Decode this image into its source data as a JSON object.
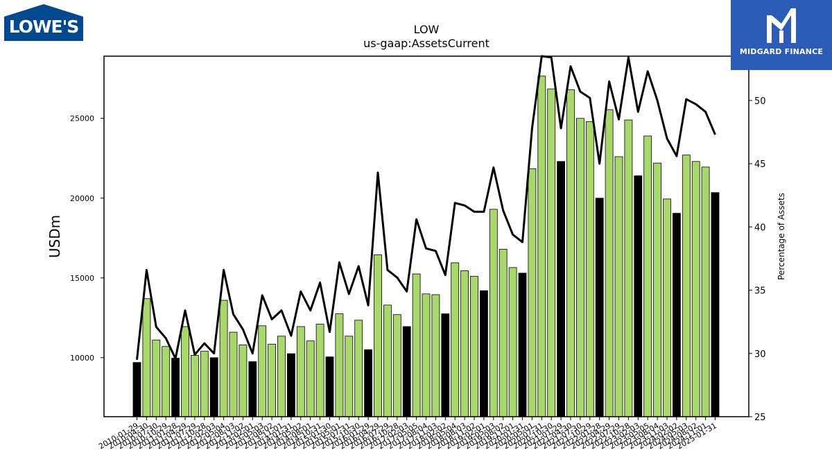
{
  "logos": {
    "left": {
      "text": "LOWE'S",
      "color": "#004990"
    },
    "right": {
      "text": "MIDGARD FINANCE",
      "color": "#2b5db8"
    }
  },
  "chart_data": {
    "type": "bar",
    "title": "LOW",
    "subtitle": "us-gaap:AssetsCurrent",
    "ylabel": "USDm",
    "y2label": "Percentage of Assets",
    "ylim": [
      6300,
      28900
    ],
    "y2lim": [
      25,
      53.5
    ],
    "yticks": [
      10000,
      15000,
      20000,
      25000
    ],
    "y2ticks": [
      25,
      30,
      35,
      40,
      45,
      50
    ],
    "colors": {
      "annual": "#000000",
      "quarterly": "#a6d96a",
      "line": "#000000"
    },
    "categories": [
      "2010-01-29",
      "2010-04-30",
      "2010-07-30",
      "2010-10-29",
      "2011-01-28",
      "2011-04-29",
      "2011-07-29",
      "2011-10-28",
      "2012-02-03",
      "2012-05-04",
      "2012-08-03",
      "2012-11-02",
      "2013-02-01",
      "2013-05-03",
      "2013-08-02",
      "2013-11-01",
      "2014-01-31",
      "2014-05-02",
      "2014-08-01",
      "2014-10-31",
      "2015-01-30",
      "2015-05-01",
      "2015-07-31",
      "2015-10-30",
      "2016-01-29",
      "2016-04-29",
      "2016-07-29",
      "2016-10-28",
      "2017-02-03",
      "2017-05-05",
      "2017-08-04",
      "2017-11-03",
      "2018-02-02",
      "2018-05-04",
      "2018-08-03",
      "2018-11-02",
      "2019-02-01",
      "2019-05-03",
      "2019-08-02",
      "2019-11-01",
      "2020-01-31",
      "2020-05-01",
      "2020-07-31",
      "2020-10-30",
      "2021-01-29",
      "2021-04-30",
      "2021-07-30",
      "2021-10-29",
      "2022-01-28",
      "2022-04-29",
      "2022-07-29",
      "2022-10-28",
      "2023-02-03",
      "2023-05-05",
      "2023-08-04",
      "2023-11-03",
      "2024-02-02",
      "2024-05-03",
      "2024-08-02",
      "2024-11-01",
      "2025-01-31"
    ],
    "tick_labels": [
      "2010-01-29",
      "2010-04-30",
      "2010-07-30",
      "2010-10-29",
      "2011-01-28",
      "2011-04-29",
      "2011-07-29",
      "2011-10-28",
      "2012-02-03",
      "2012-05-04",
      "2012-08-03",
      "2012-11-02",
      "2013-02-01",
      "2013-05-03",
      "2013-08-02",
      "2013-11-01",
      "2014-01-31",
      "2014-05-02",
      "2014-08-01",
      "2014-10-31",
      "2015-01-30",
      "2015-05-01",
      "2015-07-31",
      "2015-10-30",
      "2016-01-29",
      "2016-04-29",
      "2016-07-29",
      "2016-10-28",
      "2017-02-03",
      "2017-05-05",
      "2017-08-04",
      "2017-11-03",
      "2018-02-02",
      "2018-05-04",
      "2018-08-03",
      "2018-11-02",
      "2019-02-01",
      "2019-05-03",
      "2019-08-02",
      "2019-11-01",
      "2020-01-31",
      "2020-05-01",
      "2020-07-31",
      "2020-10-30",
      "2021-01-29",
      "2021-04-30",
      "2021-07-30",
      "2021-10-29",
      "2022-01-28",
      "2022-04-29",
      "2022-07-29",
      "2022-10-28",
      "2023-02-03",
      "2023-05-05",
      "2023-08-04",
      "2023-11-03",
      "2024-02-02",
      "2024-05-03",
      "2024-08-02",
      "2024-11-01",
      "2025-01-31"
    ],
    "values": [
      9700,
      13700,
      11100,
      10700,
      9970,
      11950,
      10150,
      10400,
      10000,
      13600,
      11600,
      10800,
      9750,
      12000,
      10850,
      11350,
      10250,
      11950,
      11050,
      12100,
      10050,
      12750,
      11350,
      12350,
      10500,
      16450,
      13300,
      12700,
      11950,
      15250,
      14000,
      13950,
      12750,
      15950,
      15450,
      15100,
      14200,
      19300,
      16800,
      15650,
      15300,
      21850,
      27650,
      26850,
      22300,
      26800,
      25000,
      24800,
      20000,
      25550,
      22600,
      24900,
      21400,
      23900,
      22200,
      19950,
      19050,
      22700,
      22300,
      21950,
      20350
    ],
    "annual": [
      true,
      false,
      false,
      false,
      true,
      false,
      false,
      false,
      true,
      false,
      false,
      false,
      true,
      false,
      false,
      false,
      true,
      false,
      false,
      false,
      true,
      false,
      false,
      false,
      true,
      false,
      false,
      false,
      true,
      false,
      false,
      false,
      true,
      false,
      false,
      false,
      true,
      false,
      false,
      false,
      true,
      false,
      false,
      false,
      true,
      false,
      false,
      false,
      true,
      false,
      false,
      false,
      true,
      false,
      false,
      false,
      true,
      false,
      false,
      false,
      true
    ],
    "pct_of_assets": [
      29.5,
      36.6,
      32.1,
      31.2,
      29.6,
      33.4,
      29.9,
      30.8,
      30.0,
      36.6,
      33.1,
      31.9,
      30.0,
      34.6,
      32.7,
      33.4,
      31.4,
      34.9,
      33.4,
      35.6,
      31.7,
      37.2,
      34.7,
      36.9,
      33.8,
      44.3,
      36.6,
      36.0,
      34.9,
      40.6,
      38.3,
      38.1,
      36.2,
      41.9,
      41.7,
      41.2,
      41.2,
      44.7,
      41.3,
      39.4,
      38.8,
      47.8,
      54.1,
      53.4,
      47.8,
      52.7,
      50.7,
      50.2,
      45.0,
      51.5,
      48.5,
      53.4,
      49.1,
      52.3,
      50.0,
      47.0,
      45.6,
      50.1,
      49.7,
      49.1,
      47.3
    ]
  }
}
